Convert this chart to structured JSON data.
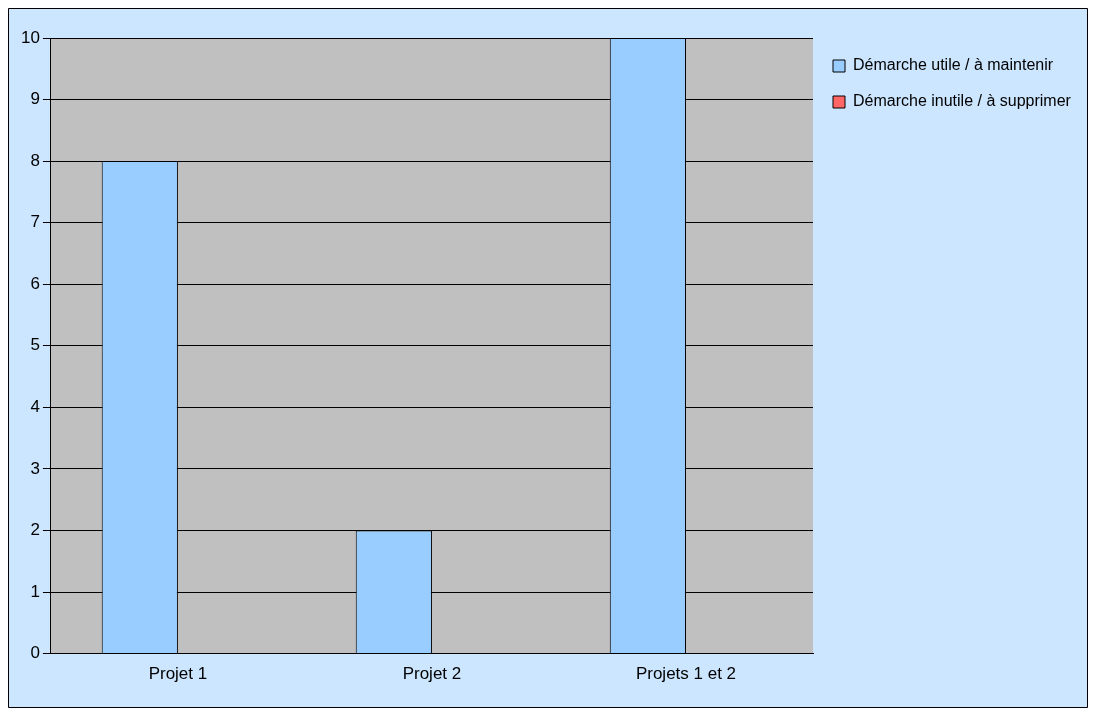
{
  "chart_data": {
    "type": "bar",
    "categories": [
      "Projet 1",
      "Projet 2",
      "Projets 1 et 2"
    ],
    "series": [
      {
        "name": "Démarche utile / à maintenir",
        "color": "#99ccff",
        "values": [
          8,
          2,
          10
        ]
      },
      {
        "name": "Démarche inutile / à supprimer",
        "color": "#ff6666",
        "values": [
          0,
          0,
          0
        ]
      }
    ],
    "ylim": [
      0,
      10
    ],
    "yticks": [
      0,
      1,
      2,
      3,
      4,
      5,
      6,
      7,
      8,
      9,
      10
    ],
    "grid": "y",
    "legend": "top right"
  }
}
